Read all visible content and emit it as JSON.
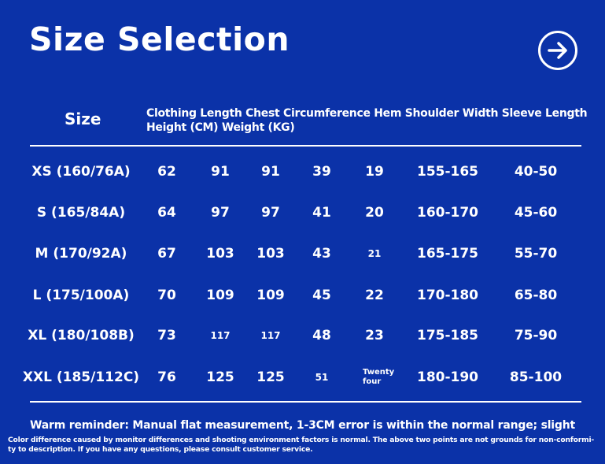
{
  "header": {
    "title": "Size Selection",
    "next_icon": "arrow-right-circle-icon"
  },
  "table": {
    "size_header": "Size",
    "columns_header": "Clothing Length Chest Circumference Hem Shoulder Width Sleeve Length Height (CM) Weight (KG)",
    "rows": [
      [
        "XS (160/76A)",
        "62",
        "91",
        "91",
        "39",
        "19",
        "155-165",
        "40-50"
      ],
      [
        "S (165/84A)",
        "64",
        "97",
        "97",
        "41",
        "20",
        "160-170",
        "45-60"
      ],
      [
        "M (170/92A)",
        "67",
        "103",
        "103",
        "43",
        "21",
        "165-175",
        "55-70"
      ],
      [
        "L (175/100A)",
        "70",
        "109",
        "109",
        "45",
        "22",
        "170-180",
        "65-80"
      ],
      [
        "XL (180/108B)",
        "73",
        "117",
        "117",
        "48",
        "23",
        "175-185",
        "75-90"
      ],
      [
        "XXL (185/112C)",
        "76",
        "125",
        "125",
        "51",
        "Twenty four",
        "180-190",
        "85-100"
      ]
    ]
  },
  "footer": {
    "reminder": "Warm reminder: Manual flat measurement, 1-3CM error is within the normal range; slight",
    "details": "Color difference caused by monitor differences and shooting environment factors is normal. The above two points are not grounds for non-conformi-ty to description. If you have any questions, please consult customer service."
  },
  "colors": {
    "background": "#0b32a8",
    "text": "#ffffff"
  }
}
